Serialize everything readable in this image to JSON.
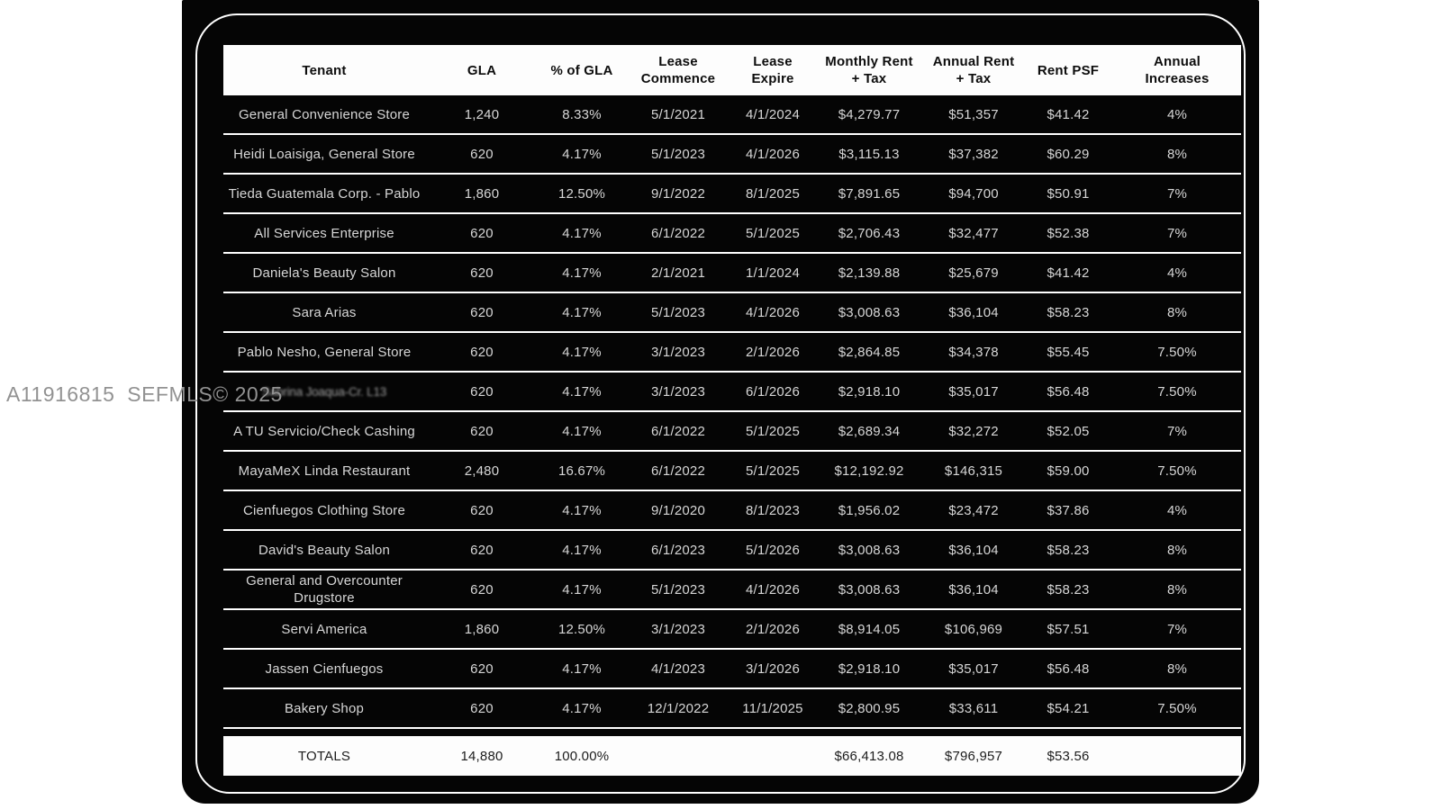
{
  "watermark": {
    "text": "A11916815  SEFMLS© 2025"
  },
  "colors": {
    "page_bg": "#ffffff",
    "panel_bg": "#050505",
    "header_bg": "#fdfdfd",
    "row_text": "#d7d7d7",
    "separator": "#ffffff",
    "watermark_text": "#929292"
  },
  "table": {
    "headers": [
      "Tenant",
      "GLA",
      "% of GLA",
      "Lease\nCommence",
      "Lease\nExpire",
      "Monthly Rent\n+ Tax",
      "Annual Rent\n+ Tax",
      "Rent PSF",
      "Annual\nIncreases"
    ],
    "rows": [
      {
        "cells": [
          "General Convenience Store",
          "1,240",
          "8.33%",
          "5/1/2021",
          "4/1/2024",
          "$4,279.77",
          "$51,357",
          "$41.42",
          "4%"
        ]
      },
      {
        "cells": [
          "Heidi Loaisiga, General Store",
          "620",
          "4.17%",
          "5/1/2023",
          "4/1/2026",
          "$3,115.13",
          "$37,382",
          "$60.29",
          "8%"
        ]
      },
      {
        "cells": [
          "Tieda Guatemala Corp. - Pablo",
          "1,860",
          "12.50%",
          "9/1/2022",
          "8/1/2025",
          "$7,891.65",
          "$94,700",
          "$50.91",
          "7%"
        ]
      },
      {
        "cells": [
          "All Services Enterprise",
          "620",
          "4.17%",
          "6/1/2022",
          "5/1/2025",
          "$2,706.43",
          "$32,477",
          "$52.38",
          "7%"
        ]
      },
      {
        "cells": [
          "Daniela's Beauty Salon",
          "620",
          "4.17%",
          "2/1/2021",
          "1/1/2024",
          "$2,139.88",
          "$25,679",
          "$41.42",
          "4%"
        ]
      },
      {
        "cells": [
          "Sara Arias",
          "620",
          "4.17%",
          "5/1/2023",
          "4/1/2026",
          "$3,008.63",
          "$36,104",
          "$58.23",
          "8%"
        ]
      },
      {
        "cells": [
          "Pablo Nesho, General Store",
          "620",
          "4.17%",
          "3/1/2023",
          "2/1/2026",
          "$2,864.85",
          "$34,378",
          "$55.45",
          "7.50%"
        ]
      },
      {
        "cells": [
          "Sabrina Joaqua-Cr. L13",
          "620",
          "4.17%",
          "3/1/2023",
          "6/1/2026",
          "$2,918.10",
          "$35,017",
          "$56.48",
          "7.50%"
        ],
        "obscured_tenant": true
      },
      {
        "cells": [
          "A TU Servicio/Check Cashing",
          "620",
          "4.17%",
          "6/1/2022",
          "5/1/2025",
          "$2,689.34",
          "$32,272",
          "$52.05",
          "7%"
        ]
      },
      {
        "cells": [
          "MayaMeX Linda Restaurant",
          "2,480",
          "16.67%",
          "6/1/2022",
          "5/1/2025",
          "$12,192.92",
          "$146,315",
          "$59.00",
          "7.50%"
        ]
      },
      {
        "cells": [
          "Cienfuegos Clothing Store",
          "620",
          "4.17%",
          "9/1/2020",
          "8/1/2023",
          "$1,956.02",
          "$23,472",
          "$37.86",
          "4%"
        ]
      },
      {
        "cells": [
          "David's Beauty Salon",
          "620",
          "4.17%",
          "6/1/2023",
          "5/1/2026",
          "$3,008.63",
          "$36,104",
          "$58.23",
          "8%"
        ]
      },
      {
        "cells": [
          "General and Overcounter Drugstore",
          "620",
          "4.17%",
          "5/1/2023",
          "4/1/2026",
          "$3,008.63",
          "$36,104",
          "$58.23",
          "8%"
        ]
      },
      {
        "cells": [
          "Servi America",
          "1,860",
          "12.50%",
          "3/1/2023",
          "2/1/2026",
          "$8,914.05",
          "$106,969",
          "$57.51",
          "7%"
        ]
      },
      {
        "cells": [
          "Jassen Cienfuegos",
          "620",
          "4.17%",
          "4/1/2023",
          "3/1/2026",
          "$2,918.10",
          "$35,017",
          "$56.48",
          "8%"
        ]
      },
      {
        "cells": [
          "Bakery Shop",
          "620",
          "4.17%",
          "12/1/2022",
          "11/1/2025",
          "$2,800.95",
          "$33,611",
          "$54.21",
          "7.50%"
        ]
      }
    ],
    "totals": {
      "label": "TOTALS",
      "gla": "14,880",
      "pct_gla": "100.00%",
      "lease_commence": "",
      "lease_expire": "",
      "monthly_rent": "$66,413.08",
      "annual_rent": "$796,957",
      "rent_psf": "$53.56",
      "annual_increase": ""
    }
  }
}
